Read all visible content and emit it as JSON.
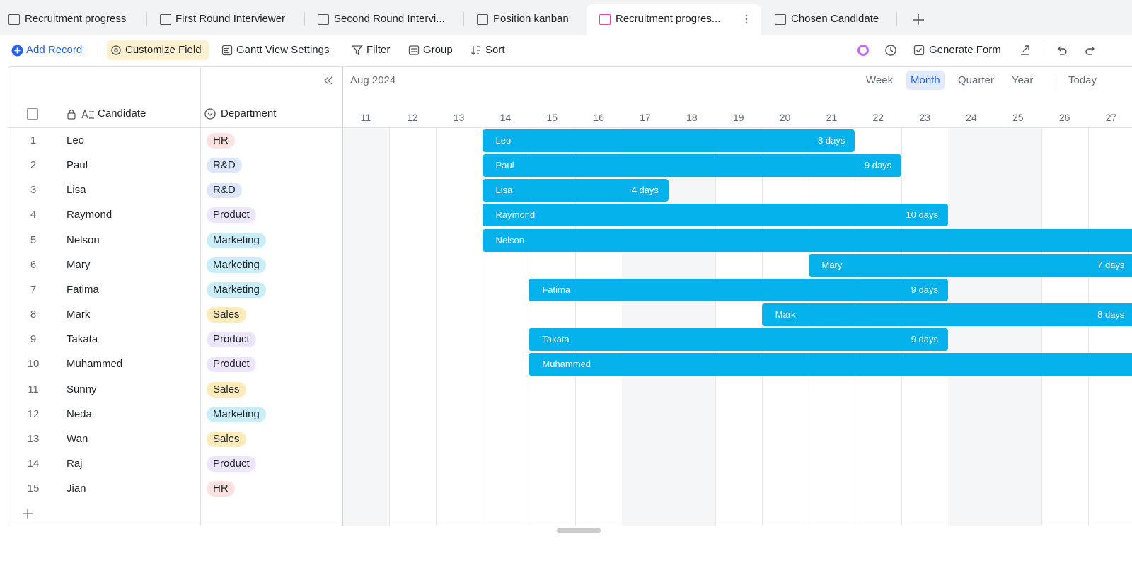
{
  "tabs": [
    "Recruitment progress",
    "First Round Interviewer",
    "Second Round Intervi...",
    "Position kanban",
    "Recruitment progres...",
    "Chosen Candidate"
  ],
  "active_tab": 4,
  "toolbar": {
    "add_record": "Add Record",
    "customize_field": "Customize Field",
    "gantt_settings": "Gantt View Settings",
    "filter": "Filter",
    "group": "Group",
    "sort": "Sort",
    "generate_form": "Generate Form"
  },
  "table": {
    "columns": [
      "Candidate",
      "Department"
    ],
    "rows": [
      {
        "no": 1,
        "name": "Leo",
        "department": "HR",
        "tag_color": "#fde2e1",
        "start": 14,
        "end": 21,
        "duration": "8 days"
      },
      {
        "no": 2,
        "name": "Paul",
        "department": "R&D",
        "tag_color": "#dde6fb",
        "start": 14,
        "end": 22,
        "duration": "9 days"
      },
      {
        "no": 3,
        "name": "Lisa",
        "department": "R&D",
        "tag_color": "#dde6fb",
        "start": 14,
        "end": 17,
        "duration": "4 days"
      },
      {
        "no": 4,
        "name": "Raymond",
        "department": "Product",
        "tag_color": "#ede5fb",
        "start": 14,
        "end": 23,
        "duration": "10 days"
      },
      {
        "no": 5,
        "name": "Nelson",
        "department": "Marketing",
        "tag_color": "#c9eefa",
        "start": 14
      },
      {
        "no": 6,
        "name": "Mary",
        "department": "Marketing",
        "tag_color": "#c9eefa",
        "start": 21,
        "end": 27,
        "duration": "7 days"
      },
      {
        "no": 7,
        "name": "Fatima",
        "department": "Marketing",
        "tag_color": "#c9eefa",
        "start": 15,
        "end": 23,
        "duration": "9 days"
      },
      {
        "no": 8,
        "name": "Mark",
        "department": "Sales",
        "tag_color": "#fdebb9",
        "start": 20,
        "end": 27,
        "duration": "8 days"
      },
      {
        "no": 9,
        "name": "Takata",
        "department": "Product",
        "tag_color": "#ede5fb",
        "start": 15,
        "end": 23,
        "duration": "9 days"
      },
      {
        "no": 10,
        "name": "Muhammed",
        "department": "Product",
        "tag_color": "#ede5fb",
        "start": 15
      },
      {
        "no": 11,
        "name": "Sunny",
        "department": "Sales",
        "tag_color": "#fdebb9"
      },
      {
        "no": 12,
        "name": "Neda",
        "department": "Marketing",
        "tag_color": "#c9eefa"
      },
      {
        "no": 13,
        "name": "Wan",
        "department": "Sales",
        "tag_color": "#fdebb9"
      },
      {
        "no": 14,
        "name": "Raj",
        "department": "Product",
        "tag_color": "#ede5fb"
      },
      {
        "no": 15,
        "name": "Jian",
        "department": "HR",
        "tag_color": "#fde2e1"
      }
    ]
  },
  "gantt": {
    "month": "Aug 2024",
    "views": [
      "Week",
      "Month",
      "Quarter",
      "Year"
    ],
    "active_view": 1,
    "today": "Today",
    "days": [
      11,
      12,
      13,
      14,
      15,
      16,
      17,
      18,
      19,
      20,
      21,
      22,
      23,
      24,
      25,
      26,
      27
    ],
    "weekends": [
      11,
      17,
      18,
      24,
      25
    ],
    "bar_color": "#04b1ea"
  }
}
